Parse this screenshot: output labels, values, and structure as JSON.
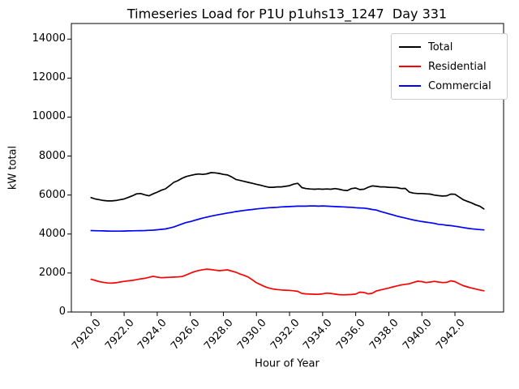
{
  "chart_data": {
    "type": "line",
    "title": "Timeseries Load for P1U p1uhs13_1247  Day 331",
    "xlabel": "Hour of Year",
    "ylabel": "kW total",
    "xlim": [
      7918.81,
      7944.94
    ],
    "ylim": [
      0,
      14800
    ],
    "grid": false,
    "legend_position": "upper right",
    "xtick_rotation_deg": 48,
    "xticks": [
      7920,
      7922,
      7924,
      7926,
      7928,
      7930,
      7932,
      7934,
      7936,
      7938,
      7940,
      7942
    ],
    "xtick_labels": [
      "7920.0",
      "7922.0",
      "7924.0",
      "7926.0",
      "7928.0",
      "7930.0",
      "7932.0",
      "7934.0",
      "7936.0",
      "7938.0",
      "7940.0",
      "7942.0"
    ],
    "yticks": [
      0,
      2000,
      4000,
      6000,
      8000,
      10000,
      12000,
      14000
    ],
    "ytick_labels": [
      "0",
      "2000",
      "4000",
      "6000",
      "8000",
      "10000",
      "12000",
      "14000"
    ],
    "x": [
      7920.0,
      7920.25,
      7920.5,
      7920.75,
      7921.0,
      7921.25,
      7921.5,
      7921.75,
      7922.0,
      7922.25,
      7922.5,
      7922.75,
      7923.0,
      7923.25,
      7923.5,
      7923.75,
      7924.0,
      7924.25,
      7924.5,
      7924.75,
      7925.0,
      7925.25,
      7925.5,
      7925.75,
      7926.0,
      7926.25,
      7926.5,
      7926.75,
      7927.0,
      7927.25,
      7927.5,
      7927.75,
      7928.0,
      7928.25,
      7928.5,
      7928.75,
      7929.0,
      7929.25,
      7929.5,
      7929.75,
      7930.0,
      7930.25,
      7930.5,
      7930.75,
      7931.0,
      7931.25,
      7931.5,
      7931.75,
      7932.0,
      7932.25,
      7932.5,
      7932.75,
      7933.0,
      7933.25,
      7933.5,
      7933.75,
      7934.0,
      7934.25,
      7934.5,
      7934.75,
      7935.0,
      7935.25,
      7935.5,
      7935.75,
      7936.0,
      7936.25,
      7936.5,
      7936.75,
      7937.0,
      7937.25,
      7937.5,
      7937.75,
      7938.0,
      7938.25,
      7938.5,
      7938.75,
      7939.0,
      7939.25,
      7939.5,
      7939.75,
      7940.0,
      7940.25,
      7940.5,
      7940.75,
      7941.0,
      7941.25,
      7941.5,
      7941.75,
      7942.0,
      7942.25,
      7942.5,
      7942.75,
      7943.0,
      7943.25,
      7943.5,
      7943.75
    ],
    "series": [
      {
        "name": "Total",
        "color": "#000000",
        "values": [
          5870,
          5800,
          5760,
          5720,
          5700,
          5700,
          5720,
          5760,
          5800,
          5880,
          5960,
          6060,
          6080,
          6010,
          5960,
          6060,
          6150,
          6250,
          6320,
          6480,
          6650,
          6740,
          6860,
          6950,
          7000,
          7050,
          7080,
          7060,
          7090,
          7150,
          7140,
          7110,
          7060,
          7030,
          6930,
          6800,
          6750,
          6700,
          6650,
          6600,
          6550,
          6500,
          6450,
          6400,
          6400,
          6420,
          6420,
          6450,
          6480,
          6560,
          6600,
          6380,
          6330,
          6310,
          6300,
          6310,
          6300,
          6310,
          6300,
          6330,
          6300,
          6250,
          6230,
          6330,
          6360,
          6280,
          6300,
          6400,
          6470,
          6450,
          6420,
          6420,
          6400,
          6390,
          6380,
          6330,
          6340,
          6150,
          6100,
          6080,
          6080,
          6060,
          6050,
          6000,
          5970,
          5950,
          5960,
          6050,
          6040,
          5900,
          5760,
          5680,
          5600,
          5500,
          5430,
          5290
        ]
      },
      {
        "name": "Residential",
        "color": "#ff0000",
        "values": [
          1680,
          1620,
          1560,
          1520,
          1490,
          1480,
          1500,
          1540,
          1570,
          1600,
          1620,
          1660,
          1700,
          1730,
          1780,
          1830,
          1790,
          1760,
          1770,
          1780,
          1790,
          1800,
          1820,
          1900,
          1990,
          2070,
          2130,
          2170,
          2200,
          2180,
          2150,
          2120,
          2140,
          2160,
          2100,
          2040,
          1950,
          1880,
          1790,
          1650,
          1500,
          1400,
          1300,
          1230,
          1180,
          1150,
          1130,
          1120,
          1110,
          1090,
          1060,
          950,
          930,
          920,
          910,
          910,
          930,
          970,
          950,
          920,
          890,
          880,
          890,
          900,
          920,
          1020,
          1000,
          930,
          960,
          1080,
          1130,
          1180,
          1230,
          1290,
          1340,
          1390,
          1420,
          1450,
          1520,
          1580,
          1560,
          1510,
          1540,
          1570,
          1540,
          1510,
          1520,
          1600,
          1560,
          1450,
          1350,
          1290,
          1230,
          1180,
          1130,
          1090
        ]
      },
      {
        "name": "Commercial",
        "color": "#0000ff",
        "values": [
          4180,
          4170,
          4165,
          4160,
          4155,
          4150,
          4150,
          4150,
          4155,
          4160,
          4165,
          4170,
          4175,
          4180,
          4190,
          4200,
          4220,
          4240,
          4260,
          4310,
          4360,
          4440,
          4520,
          4590,
          4640,
          4700,
          4760,
          4820,
          4870,
          4920,
          4960,
          5000,
          5040,
          5080,
          5110,
          5150,
          5180,
          5210,
          5240,
          5260,
          5290,
          5310,
          5330,
          5350,
          5360,
          5370,
          5390,
          5400,
          5410,
          5420,
          5430,
          5430,
          5430,
          5440,
          5440,
          5430,
          5440,
          5430,
          5420,
          5410,
          5400,
          5390,
          5380,
          5370,
          5350,
          5340,
          5330,
          5300,
          5260,
          5230,
          5160,
          5100,
          5040,
          4980,
          4920,
          4870,
          4820,
          4770,
          4720,
          4680,
          4640,
          4610,
          4580,
          4550,
          4500,
          4480,
          4450,
          4430,
          4400,
          4370,
          4330,
          4300,
          4270,
          4250,
          4230,
          4210
        ]
      }
    ]
  }
}
